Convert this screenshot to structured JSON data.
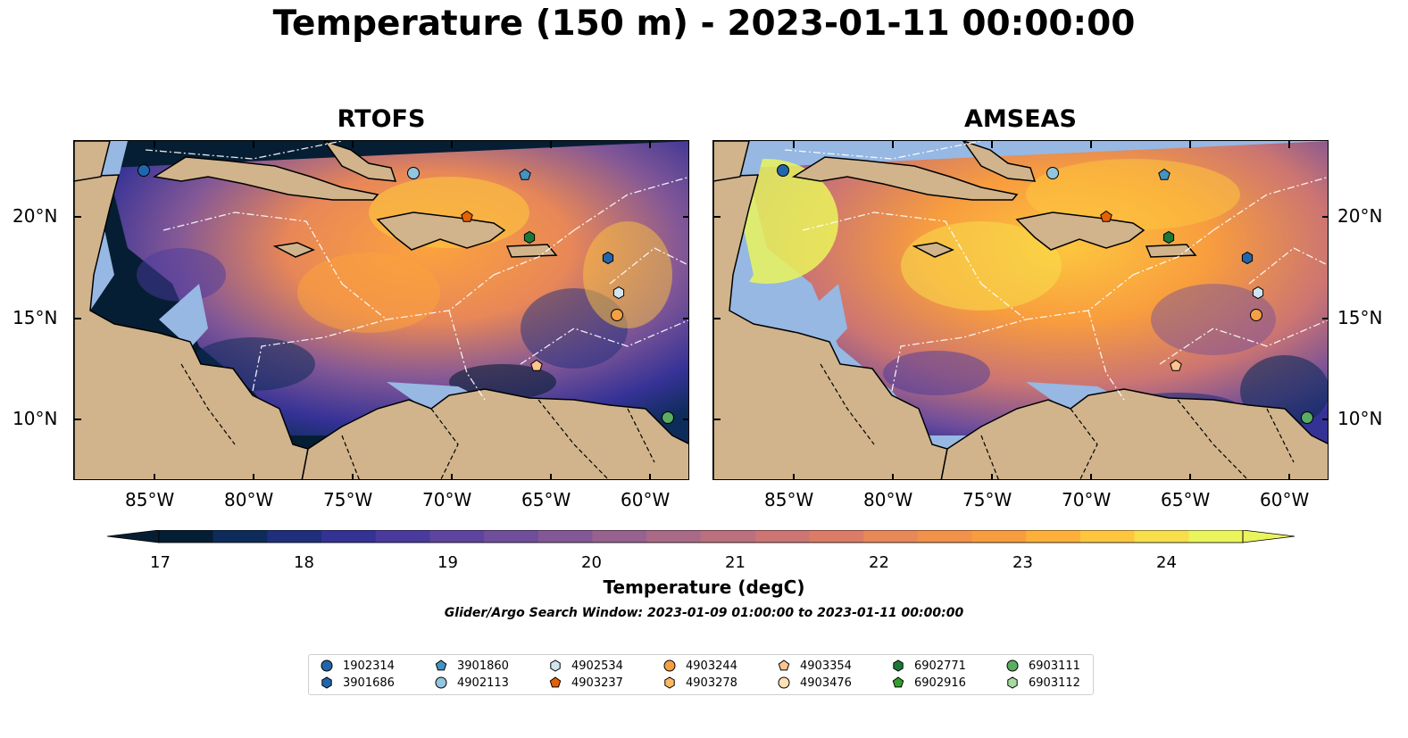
{
  "title": "Temperature (150 m) - 2023-01-11 00:00:00",
  "panels": [
    {
      "name": "RTOFS"
    },
    {
      "name": "AMSEAS"
    }
  ],
  "lon_ticks": [
    "85°W",
    "80°W",
    "75°W",
    "70°W",
    "65°W",
    "60°W"
  ],
  "lat_ticks": [
    "20°N",
    "15°N",
    "10°N"
  ],
  "colorbar": {
    "ticks": [
      "17",
      "18",
      "19",
      "20",
      "21",
      "22",
      "23",
      "24"
    ],
    "label": "Temperature (degC)",
    "colors": [
      "#061e33",
      "#0e2c5a",
      "#1f2f7c",
      "#353296",
      "#4a3a9e",
      "#5e449e",
      "#704e9b",
      "#845896",
      "#976290",
      "#aa6a87",
      "#bc6f7d",
      "#cc7572",
      "#db7c66",
      "#e88758",
      "#f2914a",
      "#f89d3e",
      "#fcb03a",
      "#fdc63e",
      "#f7de4a",
      "#eaf45c"
    ]
  },
  "search_window": "Glider/Argo Search Window: 2023-01-09 01:00:00 to 2023-01-11 00:00:00",
  "legend": [
    {
      "id": "1902314",
      "marker": "circle",
      "color": "#2166ac"
    },
    {
      "id": "3901686",
      "marker": "hexagon",
      "color": "#2166ac"
    },
    {
      "id": "3901860",
      "marker": "pentagon",
      "color": "#4393c3"
    },
    {
      "id": "4902113",
      "marker": "circle",
      "color": "#92c5de"
    },
    {
      "id": "4902534",
      "marker": "hexagon",
      "color": "#d1e5f0"
    },
    {
      "id": "4903237",
      "marker": "pentagon",
      "color": "#e66101"
    },
    {
      "id": "4903244",
      "marker": "circle",
      "color": "#f4a043"
    },
    {
      "id": "4903278",
      "marker": "hexagon",
      "color": "#fdb863"
    },
    {
      "id": "4903354",
      "marker": "pentagon",
      "color": "#fdc48f"
    },
    {
      "id": "4903476",
      "marker": "circle",
      "color": "#fee0b6"
    },
    {
      "id": "6902771",
      "marker": "hexagon",
      "color": "#1b7837"
    },
    {
      "id": "6902916",
      "marker": "pentagon",
      "color": "#33a02c"
    },
    {
      "id": "6903111",
      "marker": "circle",
      "color": "#5aae61"
    },
    {
      "id": "6903112",
      "marker": "hexagon",
      "color": "#a6dba0"
    }
  ],
  "colors": {
    "land": "#d1b48c",
    "shelf": "#96b8e3",
    "border": "#000000",
    "eez": "#ffffff"
  }
}
